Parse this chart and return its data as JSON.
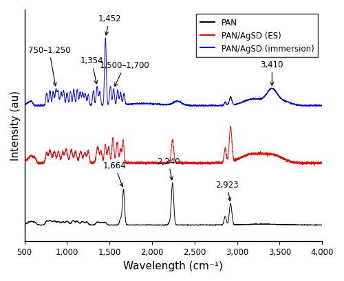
{
  "xlabel": "Wavelength (cm⁻¹)",
  "ylabel": "Intensity (au)",
  "xlim": [
    500,
    4000
  ],
  "legend_labels": [
    "PAN",
    "PAN/AgSD (ES)",
    "PAN/AgSD (immersion)"
  ],
  "legend_colors": [
    "black",
    "red",
    "blue"
  ],
  "black_baseline": 0.05,
  "red_baseline": 0.33,
  "blue_baseline": 0.6,
  "pan_scale": 0.2,
  "red_scale": 0.18,
  "blue_scale": 0.32,
  "ylim": [
    -0.02,
    1.05
  ],
  "background_color": "#ffffff"
}
